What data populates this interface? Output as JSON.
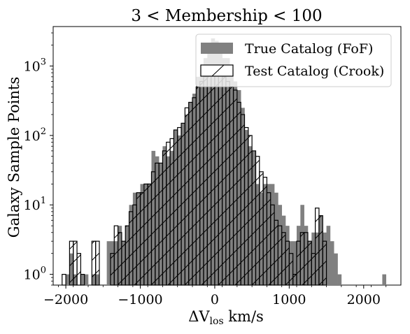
{
  "chart_data": {
    "type": "bar",
    "title": "3 < Membership < 100",
    "xlabel": "ΔV",
    "xlabel_sub": "los",
    "xlabel_unit": " km/s",
    "ylabel": "Galaxy Sample Points",
    "xlim": [
      -2170,
      2500
    ],
    "ylim": [
      0.7,
      3700
    ],
    "yscale": "log",
    "bin_width": 50,
    "x_ticks": [
      -2000,
      -1000,
      0,
      1000,
      2000
    ],
    "x_tick_labels": [
      "−2000",
      "−1000",
      "0",
      "1000",
      "2000"
    ],
    "y_ticks": [
      1,
      10,
      100,
      1000
    ],
    "y_tick_labels": [
      {
        "base": "10",
        "exp": "0"
      },
      {
        "base": "10",
        "exp": "1"
      },
      {
        "base": "10",
        "exp": "2"
      },
      {
        "base": "10",
        "exp": "3"
      }
    ],
    "legend_position": "top-right",
    "series": [
      {
        "name": "True Catalog (FoF)",
        "style": "filled",
        "color": "#808080",
        "bins": [
          [
            -2000,
            1
          ],
          [
            -1950,
            2
          ],
          [
            -1900,
            1
          ],
          [
            -1800,
            1
          ],
          [
            -1750,
            1
          ],
          [
            -1650,
            1
          ],
          [
            -1600,
            1
          ],
          [
            -1450,
            3
          ],
          [
            -1400,
            3
          ],
          [
            -1350,
            3
          ],
          [
            -1300,
            5
          ],
          [
            -1250,
            3
          ],
          [
            -1200,
            5
          ],
          [
            -1150,
            10
          ],
          [
            -1100,
            15
          ],
          [
            -1050,
            15
          ],
          [
            -1000,
            20
          ],
          [
            -950,
            20
          ],
          [
            -900,
            20
          ],
          [
            -850,
            60
          ],
          [
            -800,
            50
          ],
          [
            -750,
            40
          ],
          [
            -700,
            70
          ],
          [
            -650,
            50
          ],
          [
            -600,
            60
          ],
          [
            -550,
            120
          ],
          [
            -500,
            100
          ],
          [
            -450,
            150
          ],
          [
            -400,
            200
          ],
          [
            -350,
            300
          ],
          [
            -300,
            400
          ],
          [
            -250,
            700
          ],
          [
            -200,
            1000
          ],
          [
            -150,
            1300
          ],
          [
            -100,
            1800
          ],
          [
            -50,
            2500
          ],
          [
            0,
            2300
          ],
          [
            50,
            1600
          ],
          [
            100,
            1300
          ],
          [
            150,
            1300
          ],
          [
            200,
            900
          ],
          [
            250,
            600
          ],
          [
            300,
            450
          ],
          [
            350,
            250
          ],
          [
            400,
            120
          ],
          [
            450,
            70
          ],
          [
            500,
            60
          ],
          [
            550,
            20
          ],
          [
            600,
            15
          ],
          [
            650,
            20
          ],
          [
            700,
            20
          ],
          [
            750,
            20
          ],
          [
            800,
            15
          ],
          [
            850,
            10
          ],
          [
            900,
            7
          ],
          [
            950,
            5
          ],
          [
            1000,
            3
          ],
          [
            1050,
            3
          ],
          [
            1100,
            5
          ],
          [
            1150,
            10
          ],
          [
            1200,
            5
          ],
          [
            1250,
            3
          ],
          [
            1300,
            4
          ],
          [
            1350,
            4
          ],
          [
            1400,
            7
          ],
          [
            1450,
            4
          ],
          [
            1500,
            5
          ],
          [
            1550,
            3
          ],
          [
            1600,
            2
          ],
          [
            1650,
            1
          ],
          [
            2250,
            1
          ]
        ]
      },
      {
        "name": "Test Catalog (Crook)",
        "style": "hatched",
        "color": "#000000",
        "bins": [
          [
            -2050,
            1
          ],
          [
            -1950,
            3
          ],
          [
            -1900,
            3
          ],
          [
            -1850,
            2
          ],
          [
            -1800,
            1
          ],
          [
            -1650,
            3
          ],
          [
            -1600,
            3
          ],
          [
            -1400,
            2
          ],
          [
            -1350,
            5
          ],
          [
            -1300,
            4
          ],
          [
            -1250,
            3
          ],
          [
            -1200,
            5
          ],
          [
            -1150,
            8
          ],
          [
            -1100,
            10
          ],
          [
            -1050,
            15
          ],
          [
            -1000,
            15
          ],
          [
            -950,
            20
          ],
          [
            -900,
            20
          ],
          [
            -850,
            30
          ],
          [
            -800,
            40
          ],
          [
            -750,
            40
          ],
          [
            -700,
            60
          ],
          [
            -650,
            80
          ],
          [
            -600,
            90
          ],
          [
            -550,
            120
          ],
          [
            -500,
            130
          ],
          [
            -450,
            150
          ],
          [
            -400,
            250
          ],
          [
            -350,
            300
          ],
          [
            -300,
            350
          ],
          [
            -250,
            500
          ],
          [
            -200,
            600
          ],
          [
            -150,
            700
          ],
          [
            -100,
            800
          ],
          [
            -50,
            1000
          ],
          [
            0,
            1000
          ],
          [
            50,
            900
          ],
          [
            100,
            700
          ],
          [
            150,
            600
          ],
          [
            200,
            500
          ],
          [
            250,
            450
          ],
          [
            300,
            300
          ],
          [
            350,
            200
          ],
          [
            400,
            130
          ],
          [
            450,
            100
          ],
          [
            500,
            60
          ],
          [
            550,
            50
          ],
          [
            600,
            30
          ],
          [
            650,
            25
          ],
          [
            700,
            15
          ],
          [
            750,
            10
          ],
          [
            800,
            6
          ],
          [
            850,
            5
          ],
          [
            900,
            4
          ],
          [
            950,
            3
          ],
          [
            1000,
            2
          ],
          [
            1050,
            1
          ],
          [
            1100,
            3
          ],
          [
            1150,
            4
          ],
          [
            1200,
            4
          ],
          [
            1250,
            3
          ],
          [
            1300,
            2
          ],
          [
            1350,
            9
          ],
          [
            1400,
            7
          ],
          [
            1450,
            3
          ]
        ]
      }
    ]
  }
}
